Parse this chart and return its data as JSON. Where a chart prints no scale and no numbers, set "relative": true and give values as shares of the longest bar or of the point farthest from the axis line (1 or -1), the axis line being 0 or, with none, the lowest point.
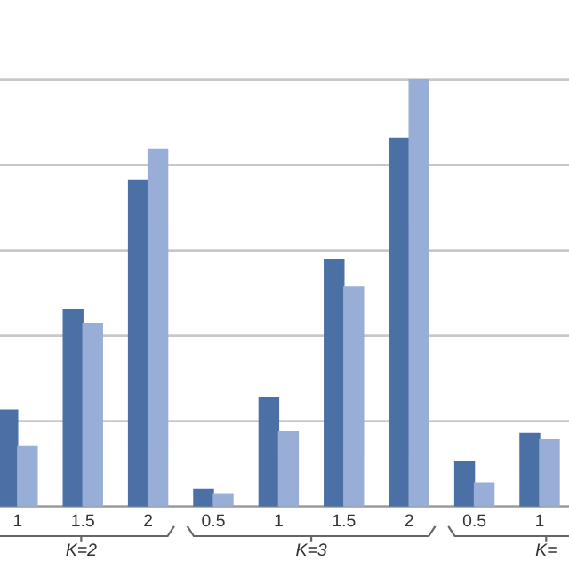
{
  "chart_data": {
    "type": "bar",
    "relative": true,
    "grid": "y",
    "categories": [
      "1",
      "1.5",
      "2",
      "0.5",
      "1",
      "1.5",
      "2",
      "0.5",
      "1"
    ],
    "series": [
      {
        "color": "#4a70a6",
        "values": [
          0.226,
          0.46,
          0.765,
          0.04,
          0.256,
          0.579,
          0.863,
          0.105,
          0.171
        ]
      },
      {
        "color": "#98aed6",
        "values": [
          0.14,
          0.429,
          0.836,
          0.028,
          0.175,
          0.514,
          1,
          0.055,
          0.156
        ]
      }
    ],
    "annotations": [
      "K=2",
      "K=3",
      "K="
    ]
  }
}
